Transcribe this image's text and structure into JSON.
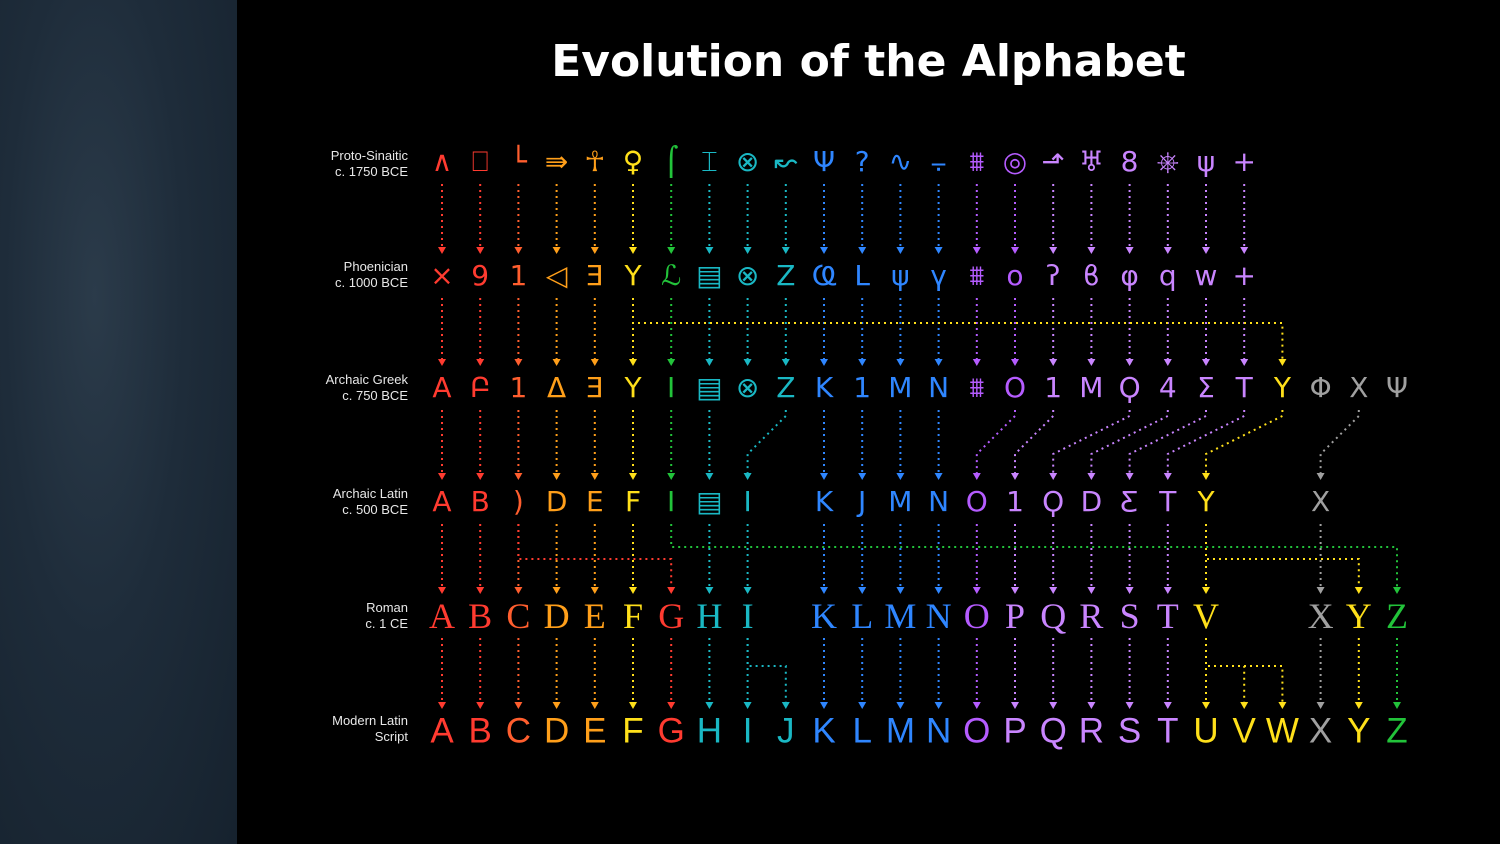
{
  "title": "Evolution of the Alphabet",
  "colors": {
    "red": "#ff3b30",
    "orangered": "#ff5e2e",
    "orange": "#ff9f1a",
    "yellow": "#ffe01a",
    "green": "#22c33a",
    "teal": "#1ab8c4",
    "blue": "#2f86ff",
    "purple": "#b55cff",
    "violet": "#c985ff",
    "gray": "#a0a0a0"
  },
  "rows": [
    {
      "id": "proto",
      "label": "Proto-Sinaitic",
      "date": "c. 1750 BCE"
    },
    {
      "id": "phoenician",
      "label": "Phoenician",
      "date": "c. 1000 BCE"
    },
    {
      "id": "greek",
      "label": "Archaic Greek",
      "date": "c. 750 BCE"
    },
    {
      "id": "latin",
      "label": "Archaic Latin",
      "date": "c. 500 BCE"
    },
    {
      "id": "roman",
      "label": "Roman",
      "date": "c. 1 CE"
    },
    {
      "id": "modern",
      "label": "Modern Latin",
      "date": "Script"
    }
  ],
  "proto_glyphs": [
    {
      "col": 0,
      "ch": "∧",
      "color": "red"
    },
    {
      "col": 1,
      "ch": "⎕",
      "color": "red"
    },
    {
      "col": 2,
      "ch": "└",
      "color": "orangered"
    },
    {
      "col": 3,
      "ch": "⇛",
      "color": "orange"
    },
    {
      "col": 4,
      "ch": "☥",
      "color": "orange"
    },
    {
      "col": 5,
      "ch": "♀",
      "color": "yellow"
    },
    {
      "col": 6,
      "ch": "⌠",
      "color": "green"
    },
    {
      "col": 7,
      "ch": "⌶",
      "color": "teal"
    },
    {
      "col": 8,
      "ch": "⊗",
      "color": "teal"
    },
    {
      "col": 9,
      "ch": "↜",
      "color": "teal"
    },
    {
      "col": 10,
      "ch": "Ψ",
      "color": "blue"
    },
    {
      "col": 11,
      "ch": "?",
      "color": "blue"
    },
    {
      "col": 12,
      "ch": "∿",
      "color": "blue"
    },
    {
      "col": 13,
      "ch": "⨪",
      "color": "blue"
    },
    {
      "col": 14,
      "ch": "⩩",
      "color": "purple"
    },
    {
      "col": 15,
      "ch": "◎",
      "color": "purple"
    },
    {
      "col": 16,
      "ch": "⬏",
      "color": "violet"
    },
    {
      "col": 17,
      "ch": "♅",
      "color": "violet"
    },
    {
      "col": 18,
      "ch": "8",
      "color": "violet"
    },
    {
      "col": 19,
      "ch": "⎈",
      "color": "violet"
    },
    {
      "col": 20,
      "ch": "ψ",
      "color": "violet"
    },
    {
      "col": 21,
      "ch": "+",
      "color": "violet"
    }
  ],
  "phoenician_glyphs": [
    {
      "col": 0,
      "ch": "⨯",
      "color": "red"
    },
    {
      "col": 1,
      "ch": "9",
      "color": "red"
    },
    {
      "col": 2,
      "ch": "1",
      "color": "orangered"
    },
    {
      "col": 3,
      "ch": "◁",
      "color": "orange"
    },
    {
      "col": 4,
      "ch": "Ǝ",
      "color": "orange"
    },
    {
      "col": 5,
      "ch": "Y",
      "color": "yellow"
    },
    {
      "col": 6,
      "ch": "ℒ",
      "color": "green"
    },
    {
      "col": 7,
      "ch": "▤",
      "color": "teal"
    },
    {
      "col": 8,
      "ch": "⊗",
      "color": "teal"
    },
    {
      "col": 9,
      "ch": "Z",
      "color": "teal"
    },
    {
      "col": 10,
      "ch": "Ҩ",
      "color": "blue"
    },
    {
      "col": 11,
      "ch": "L",
      "color": "blue"
    },
    {
      "col": 12,
      "ch": "ψ",
      "color": "blue"
    },
    {
      "col": 13,
      "ch": "ү",
      "color": "blue"
    },
    {
      "col": 14,
      "ch": "⩩",
      "color": "purple"
    },
    {
      "col": 15,
      "ch": "o",
      "color": "purple"
    },
    {
      "col": 16,
      "ch": "ʔ",
      "color": "violet"
    },
    {
      "col": 17,
      "ch": "ϐ",
      "color": "violet"
    },
    {
      "col": 18,
      "ch": "φ",
      "color": "violet"
    },
    {
      "col": 19,
      "ch": "q",
      "color": "violet"
    },
    {
      "col": 20,
      "ch": "w",
      "color": "violet"
    },
    {
      "col": 21,
      "ch": "+",
      "color": "violet"
    }
  ],
  "greek_glyphs": [
    {
      "col": 0,
      "ch": "A",
      "color": "red"
    },
    {
      "col": 1,
      "ch": "Բ",
      "color": "red"
    },
    {
      "col": 2,
      "ch": "1",
      "color": "orangered"
    },
    {
      "col": 3,
      "ch": "Δ",
      "color": "orange"
    },
    {
      "col": 4,
      "ch": "Ǝ",
      "color": "orange"
    },
    {
      "col": 5,
      "ch": "Y",
      "color": "yellow"
    },
    {
      "col": 6,
      "ch": "I",
      "color": "green"
    },
    {
      "col": 7,
      "ch": "▤",
      "color": "teal"
    },
    {
      "col": 8,
      "ch": "⊗",
      "color": "teal"
    },
    {
      "col": 9,
      "ch": "Z",
      "color": "teal"
    },
    {
      "col": 10,
      "ch": "K",
      "color": "blue"
    },
    {
      "col": 11,
      "ch": "1",
      "color": "blue"
    },
    {
      "col": 12,
      "ch": "M",
      "color": "blue"
    },
    {
      "col": 13,
      "ch": "N",
      "color": "blue"
    },
    {
      "col": 14,
      "ch": "⩩",
      "color": "purple"
    },
    {
      "col": 15,
      "ch": "O",
      "color": "purple"
    },
    {
      "col": 16,
      "ch": "1",
      "color": "violet"
    },
    {
      "col": 17,
      "ch": "M",
      "color": "violet"
    },
    {
      "col": 18,
      "ch": "Ϙ",
      "color": "violet"
    },
    {
      "col": 19,
      "ch": "4",
      "color": "violet"
    },
    {
      "col": 20,
      "ch": "Σ",
      "color": "violet"
    },
    {
      "col": 21,
      "ch": "T",
      "color": "violet"
    },
    {
      "col": 22,
      "ch": "Y",
      "color": "yellow"
    },
    {
      "col": 23,
      "ch": "Φ",
      "color": "gray"
    },
    {
      "col": 24,
      "ch": "X",
      "color": "gray"
    },
    {
      "col": 25,
      "ch": "Ψ",
      "color": "gray"
    }
  ],
  "latin_glyphs": [
    {
      "col": 0,
      "ch": "A",
      "color": "red"
    },
    {
      "col": 1,
      "ch": "B",
      "color": "red"
    },
    {
      "col": 2,
      "ch": ")",
      "color": "orangered"
    },
    {
      "col": 3,
      "ch": "D",
      "color": "orange"
    },
    {
      "col": 4,
      "ch": "E",
      "color": "orange"
    },
    {
      "col": 5,
      "ch": "F",
      "color": "yellow"
    },
    {
      "col": 6,
      "ch": "I",
      "color": "green"
    },
    {
      "col": 7,
      "ch": "▤",
      "color": "teal"
    },
    {
      "col": 8,
      "ch": "I",
      "color": "teal"
    },
    {
      "col": 10,
      "ch": "K",
      "color": "blue"
    },
    {
      "col": 11,
      "ch": "J",
      "color": "blue"
    },
    {
      "col": 12,
      "ch": "M",
      "color": "blue"
    },
    {
      "col": 13,
      "ch": "N",
      "color": "blue"
    },
    {
      "col": 14,
      "ch": "O",
      "color": "purple"
    },
    {
      "col": 15,
      "ch": "1",
      "color": "violet"
    },
    {
      "col": 16,
      "ch": "Ϙ",
      "color": "violet"
    },
    {
      "col": 17,
      "ch": "D",
      "color": "violet"
    },
    {
      "col": 18,
      "ch": "Ƹ",
      "color": "violet"
    },
    {
      "col": 19,
      "ch": "T",
      "color": "violet"
    },
    {
      "col": 20,
      "ch": "Y",
      "color": "yellow"
    },
    {
      "col": 23,
      "ch": "X",
      "color": "gray"
    }
  ],
  "roman_glyphs": [
    {
      "col": 0,
      "ch": "A",
      "color": "red"
    },
    {
      "col": 1,
      "ch": "B",
      "color": "red"
    },
    {
      "col": 2,
      "ch": "C",
      "color": "orangered"
    },
    {
      "col": 3,
      "ch": "D",
      "color": "orange"
    },
    {
      "col": 4,
      "ch": "E",
      "color": "orange"
    },
    {
      "col": 5,
      "ch": "F",
      "color": "yellow"
    },
    {
      "col": 6,
      "ch": "G",
      "color": "red"
    },
    {
      "col": 7,
      "ch": "H",
      "color": "teal"
    },
    {
      "col": 8,
      "ch": "I",
      "color": "teal"
    },
    {
      "col": 10,
      "ch": "K",
      "color": "blue"
    },
    {
      "col": 11,
      "ch": "L",
      "color": "blue"
    },
    {
      "col": 12,
      "ch": "M",
      "color": "blue"
    },
    {
      "col": 13,
      "ch": "N",
      "color": "blue"
    },
    {
      "col": 14,
      "ch": "O",
      "color": "purple"
    },
    {
      "col": 15,
      "ch": "P",
      "color": "violet"
    },
    {
      "col": 16,
      "ch": "Q",
      "color": "violet"
    },
    {
      "col": 17,
      "ch": "R",
      "color": "violet"
    },
    {
      "col": 18,
      "ch": "S",
      "color": "violet"
    },
    {
      "col": 19,
      "ch": "T",
      "color": "violet"
    },
    {
      "col": 20,
      "ch": "V",
      "color": "yellow"
    },
    {
      "col": 23,
      "ch": "X",
      "color": "gray"
    },
    {
      "col": 24,
      "ch": "Y",
      "color": "yellow"
    },
    {
      "col": 25,
      "ch": "Z",
      "color": "green"
    }
  ],
  "modern_glyphs": [
    {
      "col": 0,
      "ch": "A",
      "color": "red"
    },
    {
      "col": 1,
      "ch": "B",
      "color": "red"
    },
    {
      "col": 2,
      "ch": "C",
      "color": "orangered"
    },
    {
      "col": 3,
      "ch": "D",
      "color": "orange"
    },
    {
      "col": 4,
      "ch": "E",
      "color": "orange"
    },
    {
      "col": 5,
      "ch": "F",
      "color": "yellow"
    },
    {
      "col": 6,
      "ch": "G",
      "color": "red"
    },
    {
      "col": 7,
      "ch": "H",
      "color": "teal"
    },
    {
      "col": 8,
      "ch": "I",
      "color": "teal"
    },
    {
      "col": 9,
      "ch": "J",
      "color": "teal"
    },
    {
      "col": 10,
      "ch": "K",
      "color": "blue"
    },
    {
      "col": 11,
      "ch": "L",
      "color": "blue"
    },
    {
      "col": 12,
      "ch": "M",
      "color": "blue"
    },
    {
      "col": 13,
      "ch": "N",
      "color": "blue"
    },
    {
      "col": 14,
      "ch": "O",
      "color": "purple"
    },
    {
      "col": 15,
      "ch": "P",
      "color": "violet"
    },
    {
      "col": 16,
      "ch": "Q",
      "color": "violet"
    },
    {
      "col": 17,
      "ch": "R",
      "color": "violet"
    },
    {
      "col": 18,
      "ch": "S",
      "color": "violet"
    },
    {
      "col": 19,
      "ch": "T",
      "color": "violet"
    },
    {
      "col": 20,
      "ch": "U",
      "color": "yellow"
    },
    {
      "col": 21,
      "ch": "V",
      "color": "yellow"
    },
    {
      "col": 22,
      "ch": "W",
      "color": "yellow"
    },
    {
      "col": 23,
      "ch": "X",
      "color": "gray"
    },
    {
      "col": 24,
      "ch": "Y",
      "color": "yellow"
    },
    {
      "col": 25,
      "ch": "Z",
      "color": "green"
    }
  ],
  "connections": [
    {
      "from": "proto",
      "to": "phoenician",
      "cols": [
        0,
        1,
        2,
        3,
        4,
        5,
        6,
        7,
        8,
        9,
        10,
        11,
        12,
        13,
        14,
        15,
        16,
        17,
        18,
        19,
        20,
        21
      ]
    },
    {
      "from": "phoenician",
      "to": "greek",
      "cols": [
        0,
        1,
        2,
        3,
        4,
        5,
        6,
        7,
        8,
        9,
        10,
        11,
        12,
        13,
        14,
        15,
        16,
        17,
        18,
        19,
        20,
        21
      ],
      "extra": [
        {
          "from_col": 5,
          "to_col": 22,
          "color": "yellow"
        }
      ]
    },
    {
      "from": "greek",
      "to": "latin",
      "cols": [
        0,
        1,
        2,
        3,
        4,
        5,
        6,
        7,
        10,
        11,
        12,
        13
      ],
      "diag": [
        {
          "from_col": 9,
          "to_col": 8,
          "color": "teal"
        },
        {
          "from_col": 15,
          "to_col": 14,
          "color": "purple"
        },
        {
          "from_col": 16,
          "to_col": 15,
          "color": "violet"
        },
        {
          "from_col": 18,
          "to_col": 16,
          "color": "violet"
        },
        {
          "from_col": 19,
          "to_col": 17,
          "color": "violet"
        },
        {
          "from_col": 20,
          "to_col": 18,
          "color": "violet"
        },
        {
          "from_col": 21,
          "to_col": 19,
          "color": "violet"
        },
        {
          "from_col": 22,
          "to_col": 20,
          "color": "yellow"
        },
        {
          "from_col": 24,
          "to_col": 23,
          "color": "gray"
        }
      ]
    },
    {
      "from": "latin",
      "to": "roman",
      "cols": [
        0,
        1,
        2,
        3,
        4,
        5,
        7,
        8,
        10,
        11,
        12,
        13,
        14,
        15,
        16,
        17,
        18,
        19,
        20,
        23
      ],
      "extra": [
        {
          "from_col": 2,
          "to_col": 6,
          "color": "red"
        },
        {
          "from_col": 6,
          "to_col": 25,
          "color": "green"
        },
        {
          "from_col": 20,
          "to_col": 24,
          "color": "yellow"
        }
      ]
    },
    {
      "from": "roman",
      "to": "modern",
      "cols": [
        0,
        1,
        2,
        3,
        4,
        5,
        6,
        7,
        8,
        10,
        11,
        12,
        13,
        14,
        15,
        16,
        17,
        18,
        19,
        20,
        23,
        24,
        25
      ],
      "extra": [
        {
          "from_col": 8,
          "to_col": 9,
          "color": "teal"
        },
        {
          "from_col": 20,
          "to_col": 21,
          "color": "yellow"
        },
        {
          "from_col": 20,
          "to_col": 22,
          "color": "yellow"
        }
      ]
    }
  ]
}
